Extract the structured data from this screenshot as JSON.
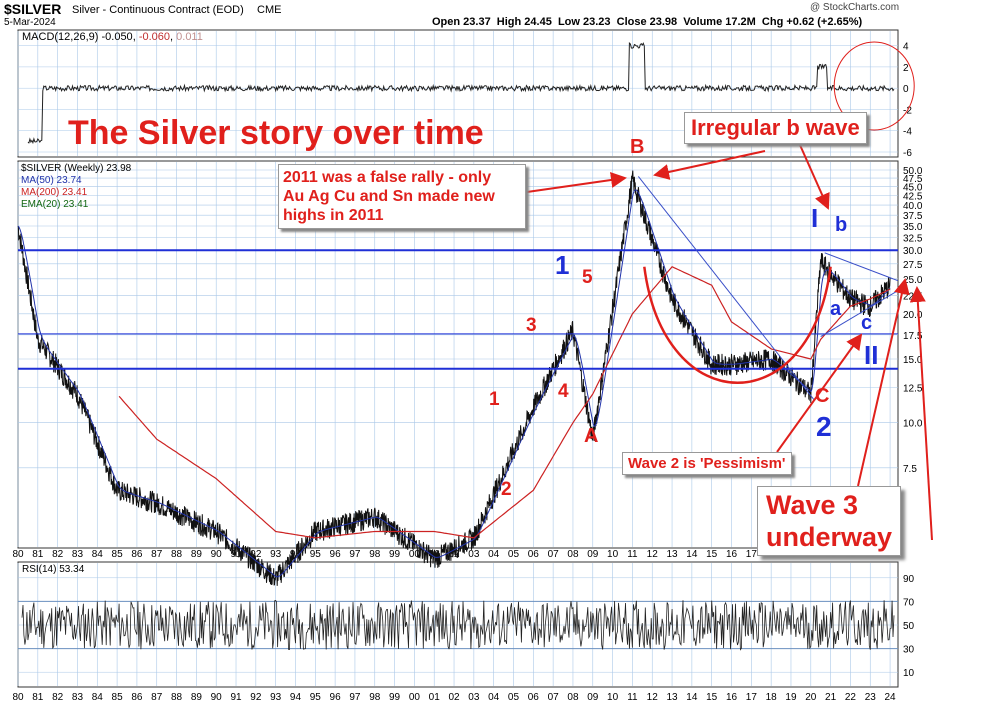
{
  "header": {
    "symbol": "$SILVER",
    "description": "Silver - Continuous Contract (EOD)",
    "exchange": "CME",
    "date": "5-Mar-2024",
    "copyright": "@ StockCharts.com",
    "ohlc": "Open 23.37  High 24.45  Low 23.23  Close 23.98  Volume 17.2M  Chg +0.62 (+2.65%)"
  },
  "macd_panel": {
    "label": "MACD(12,26,9)",
    "v1": "-0.050",
    "v2": "-0.060",
    "v3": "0.011",
    "ticks": [
      "4",
      "2",
      "0",
      "-2",
      "-4",
      "-6"
    ]
  },
  "price_panel": {
    "legend": [
      "$SILVER (Weekly) 23.98",
      "MA(50) 23.74",
      "MA(200) 23.41",
      "EMA(20) 23.41"
    ],
    "legend_colors": [
      "#000000",
      "#2233aa",
      "#cc2222",
      "#116611"
    ],
    "y_ticks": [
      "50.0",
      "47.5",
      "45.0",
      "42.5",
      "40.0",
      "37.5",
      "35.0",
      "32.5",
      "30.0",
      "27.5",
      "25.0",
      "22.5",
      "20.0",
      "17.5",
      "15.0",
      "12.5",
      "10.0",
      "7.5"
    ]
  },
  "rsi_panel": {
    "label": "RSI(14) 53.34",
    "ticks": [
      "90",
      "70",
      "50",
      "30",
      "10"
    ]
  },
  "x_labels": [
    "80",
    "81",
    "82",
    "83",
    "84",
    "85",
    "86",
    "87",
    "88",
    "89",
    "90",
    "91",
    "92",
    "93",
    "94",
    "95",
    "96",
    "97",
    "98",
    "99",
    "00",
    "01",
    "02",
    "03",
    "04",
    "05",
    "06",
    "07",
    "08",
    "09",
    "10",
    "11",
    "12",
    "13",
    "14",
    "15",
    "16",
    "17",
    "18",
    "19",
    "20",
    "21",
    "22",
    "23",
    "24"
  ],
  "annotations": {
    "title": "The Silver story over time",
    "false_rally": [
      "2011 was a false rally - only",
      "Au Ag Cu and Sn made new",
      "highs in 2011"
    ],
    "irregular": "Irregular b wave",
    "pessimism": "Wave 2 is 'Pessimism'",
    "wave3": [
      "Wave 3",
      "underway"
    ],
    "wave_labels": {
      "r1": "1",
      "r2": "2",
      "r3": "3",
      "r4": "4",
      "r5": "5",
      "A": "A",
      "B": "B",
      "C": "C",
      "b1": "1",
      "bI": "I",
      "bII": "II",
      "b2": "2",
      "a": "a",
      "b": "b",
      "c": "c"
    }
  },
  "colors": {
    "red": "#e0201c",
    "blue": "#1f2fd6",
    "grid": "#aac8e8",
    "price": "#111111"
  },
  "chart_data": {
    "type": "line",
    "title": "The Silver story over time",
    "x": [
      "1980",
      "1981",
      "1983",
      "1985",
      "1987",
      "1990",
      "1993",
      "1995",
      "1998",
      "2001",
      "2003",
      "2006",
      "2008",
      "2009",
      "2011",
      "2013",
      "2015",
      "2016",
      "2018",
      "2020",
      "2020.5",
      "2022",
      "2023",
      "2024"
    ],
    "series": [
      {
        "name": "$SILVER (Weekly)",
        "values": [
          35,
          17,
          12,
          6.5,
          6,
          5,
          3.7,
          5,
          5.5,
          4.2,
          4.8,
          11,
          18,
          9,
          47,
          22,
          14.5,
          14.5,
          15,
          12,
          28,
          22,
          21,
          23.98
        ]
      },
      {
        "name": "MA(200)",
        "values": [
          null,
          null,
          null,
          12,
          9,
          7,
          5,
          4.8,
          5,
          5,
          4.8,
          6.5,
          10,
          12,
          20,
          27,
          24,
          19,
          16,
          15,
          17,
          21,
          22,
          23.41
        ]
      }
    ],
    "ylim": [
      4.5,
      50
    ],
    "ylog": true,
    "rsi_ylim": [
      0,
      100
    ],
    "macd_ylim": [
      -6,
      5
    ]
  }
}
